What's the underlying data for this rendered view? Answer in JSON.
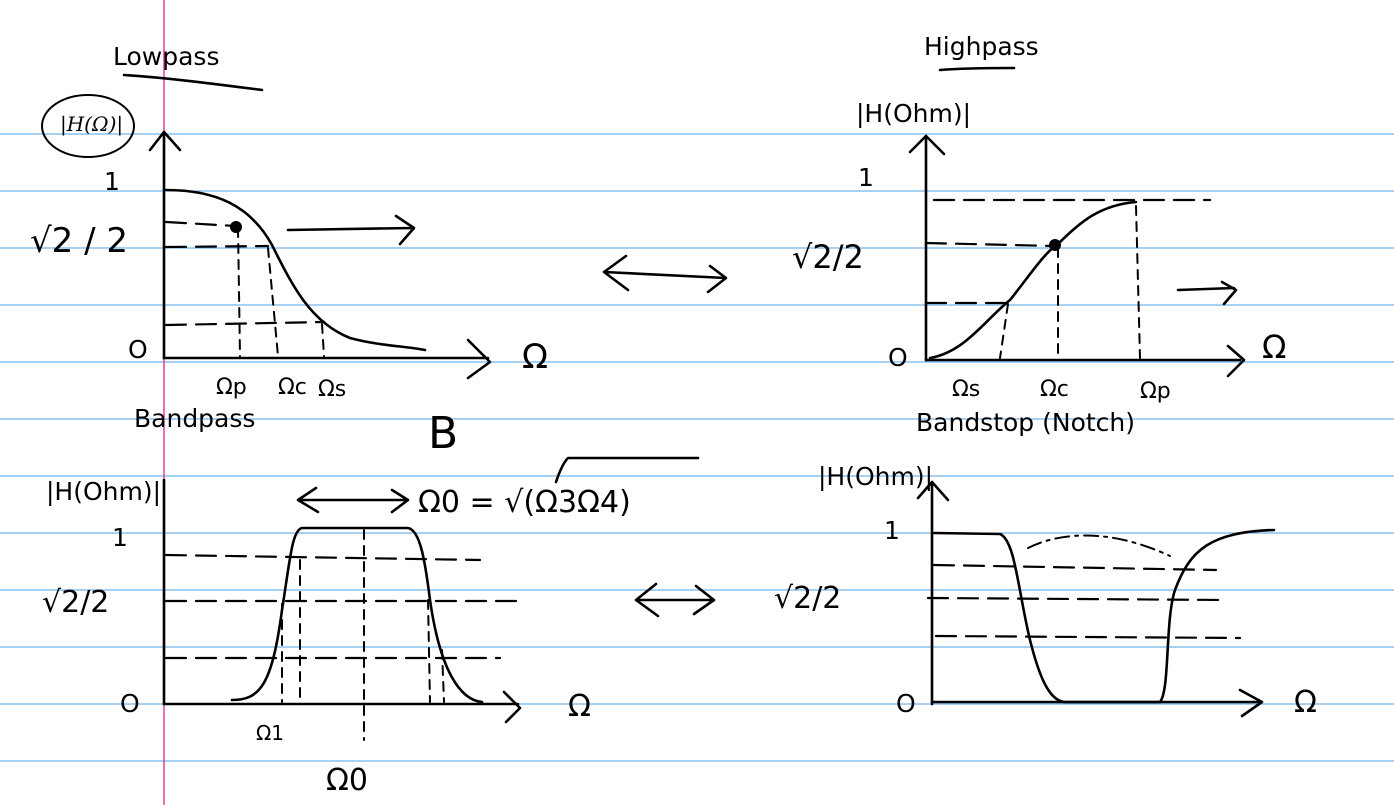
{
  "panels": {
    "lowpass": {
      "title": "Lowpass",
      "ylabel": "|H(Ω)|",
      "tick_one": "1",
      "tick_zero": "O",
      "tick_mid": "√2 / 2",
      "x_axis": "Ω",
      "x_ticks": [
        "Ωp",
        "Ωc",
        "Ωs"
      ]
    },
    "highpass": {
      "title": "Highpass",
      "ylabel": "|H(Ohm)|",
      "tick_one": "1",
      "tick_zero": "O",
      "tick_mid": "√2/2",
      "x_axis": "Ω",
      "x_ticks": [
        "Ωs",
        "Ωc",
        "Ωp"
      ]
    },
    "bandpass": {
      "title": "Bandpass",
      "ylabel": "|H(Ohm)|",
      "tick_one": "1",
      "tick_zero": "O",
      "tick_mid": "√2/2",
      "x_axis": "Ω",
      "x_ticks": [
        "Ω1",
        "Ω0"
      ],
      "bandwidth_label": "B",
      "center_formula": "Ω0 = √(Ω3Ω4)"
    },
    "bandstop": {
      "title": "Bandstop (Notch)",
      "ylabel": "|H(Ohm)|",
      "tick_one": "1",
      "tick_zero": "O",
      "tick_mid": "√2/2",
      "x_axis": "Ω"
    }
  },
  "colors": {
    "ruling": "#4ea3e6",
    "margin": "#e0409a",
    "ink": "#000000"
  }
}
